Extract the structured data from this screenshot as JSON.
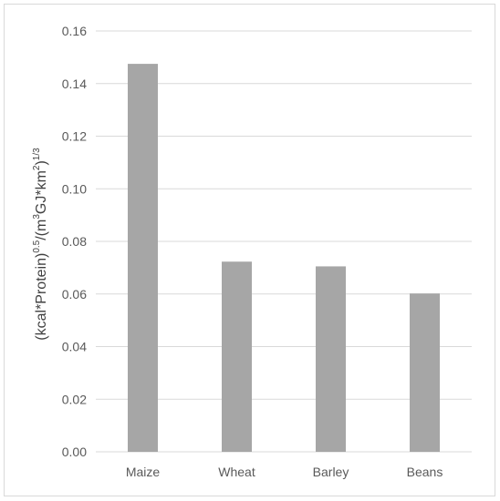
{
  "chart_data": {
    "type": "bar",
    "categories": [
      "Maize",
      "Wheat",
      "Barley",
      "Beans"
    ],
    "values": [
      0.1475,
      0.0723,
      0.0705,
      0.0602
    ],
    "title": "",
    "xlabel": "",
    "ylabel_parts": [
      "(kcal*Protein)",
      "0.5",
      "/(m",
      "3",
      "GJ*km",
      "2",
      ")",
      "1/3"
    ],
    "ylim": [
      0,
      0.16
    ],
    "yticks": [
      "0.00",
      "0.02",
      "0.04",
      "0.06",
      "0.08",
      "0.10",
      "0.12",
      "0.14",
      "0.16"
    ],
    "grid": true,
    "legend": "none",
    "bar_color": "#a6a6a6",
    "grid_color": "#d9d9d9"
  }
}
